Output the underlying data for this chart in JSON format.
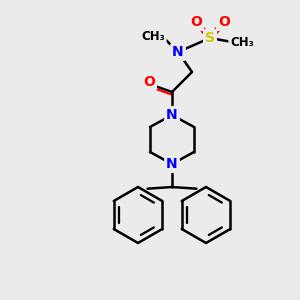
{
  "bg_color": "#ebebeb",
  "atom_colors": {
    "N": "#0000ff",
    "O": "#ff0000",
    "S": "#cccc00"
  },
  "line_color": "#000000",
  "line_width": 1.8,
  "font_size": 10,
  "font_size_small": 8.5
}
